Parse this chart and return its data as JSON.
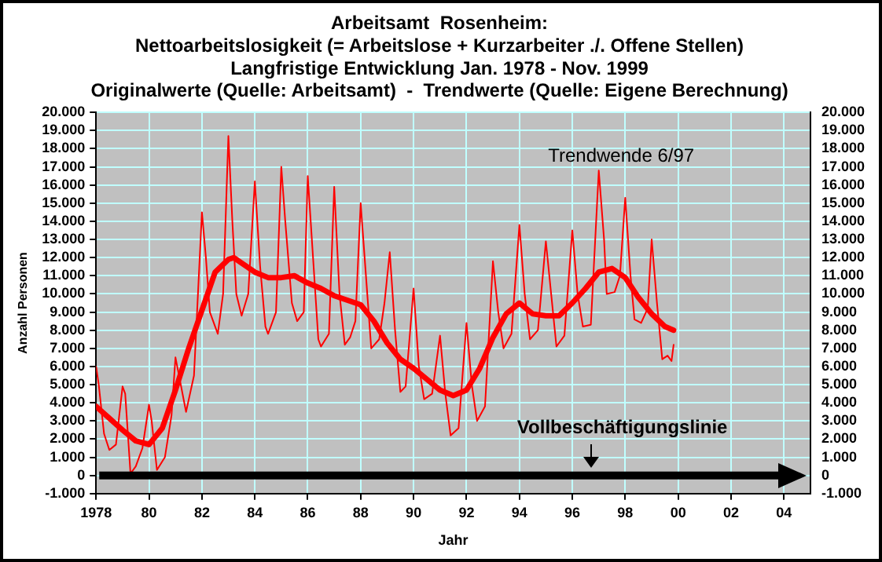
{
  "chart_data": {
    "type": "line",
    "title": [
      "Arbeitsamt  Rosenheim:",
      "Nettoarbeitslosigkeit (= Arbeitslose + Kurzarbeiter ./. Offene Stellen)",
      "Langfristige Entwicklung Jan. 1978 - Nov. 1999",
      "Originalwerte (Quelle: Arbeitsamt)  -  Trendwerte (Quelle: Eigene Berechnung)"
    ],
    "xlabel": "Jahr",
    "ylabel": "Anzahl Personen",
    "xlim": [
      1978,
      2005
    ],
    "xticks": [
      {
        "value": 1978,
        "label": "1978"
      },
      {
        "value": 1980,
        "label": "80"
      },
      {
        "value": 1982,
        "label": "82"
      },
      {
        "value": 1984,
        "label": "84"
      },
      {
        "value": 1986,
        "label": "86"
      },
      {
        "value": 1988,
        "label": "88"
      },
      {
        "value": 1990,
        "label": "90"
      },
      {
        "value": 1992,
        "label": "92"
      },
      {
        "value": 1994,
        "label": "94"
      },
      {
        "value": 1996,
        "label": "96"
      },
      {
        "value": 1998,
        "label": "98"
      },
      {
        "value": 2000,
        "label": "00"
      },
      {
        "value": 2002,
        "label": "02"
      },
      {
        "value": 2004,
        "label": "04"
      }
    ],
    "ylim": [
      -1000,
      20000
    ],
    "yticks": [
      {
        "value": -1000,
        "label": "-1.000"
      },
      0,
      {
        "value": 1000,
        "label": "1.000"
      },
      {
        "value": 2000,
        "label": "2.000"
      },
      {
        "value": 3000,
        "label": "3.000"
      },
      {
        "value": 4000,
        "label": "4.000"
      },
      {
        "value": 5000,
        "label": "5.000"
      },
      {
        "value": 6000,
        "label": "6.000"
      },
      {
        "value": 7000,
        "label": "7.000"
      },
      {
        "value": 8000,
        "label": "8.000"
      },
      {
        "value": 9000,
        "label": "9.000"
      },
      {
        "value": 10000,
        "label": "10.000"
      },
      {
        "value": 11000,
        "label": "11.000"
      },
      {
        "value": 12000,
        "label": "12.000"
      },
      {
        "value": 13000,
        "label": "13.000"
      },
      {
        "value": 14000,
        "label": "14.000"
      },
      {
        "value": 15000,
        "label": "15.000"
      },
      {
        "value": 16000,
        "label": "16.000"
      },
      {
        "value": 17000,
        "label": "17.000"
      },
      {
        "value": 18000,
        "label": "18.000"
      },
      {
        "value": 19000,
        "label": "19.000"
      },
      {
        "value": 20000,
        "label": "20.000"
      }
    ],
    "y2lim": [
      -1000,
      20000
    ],
    "y2ticks": [
      {
        "value": -1000,
        "label": "-1.000"
      },
      0,
      {
        "value": 1000,
        "label": "1.000"
      },
      {
        "value": 2000,
        "label": "2.000"
      },
      {
        "value": 3000,
        "label": "3.000"
      },
      {
        "value": 4000,
        "label": "4.000"
      },
      {
        "value": 5000,
        "label": "5.000"
      },
      {
        "value": 6000,
        "label": "6.000"
      },
      {
        "value": 7000,
        "label": "7.000"
      },
      {
        "value": 8000,
        "label": "8.000"
      },
      {
        "value": 9000,
        "label": "9.000"
      },
      {
        "value": 10000,
        "label": "10.000"
      },
      {
        "value": 11000,
        "label": "11.000"
      },
      {
        "value": 12000,
        "label": "12.000"
      },
      {
        "value": 13000,
        "label": "13.000"
      },
      {
        "value": 14000,
        "label": "14.000"
      },
      {
        "value": 15000,
        "label": "15.000"
      },
      {
        "value": 16000,
        "label": "16.000"
      },
      {
        "value": 17000,
        "label": "17.000"
      },
      {
        "value": 18000,
        "label": "18.000"
      },
      {
        "value": 19000,
        "label": "19.000"
      },
      {
        "value": 20000,
        "label": "20.000"
      }
    ],
    "grid": true,
    "legend": false,
    "marker": "none",
    "line_style": "solid",
    "series": [
      {
        "color": "#ff0000",
        "x": [
          1978.0,
          1978.1,
          1978.3,
          1978.5,
          1978.75,
          1979.0,
          1979.1,
          1979.3,
          1979.5,
          1979.75,
          1980.0,
          1980.1,
          1980.3,
          1980.6,
          1980.85,
          1981.0,
          1981.2,
          1981.4,
          1981.7,
          1982.0,
          1982.15,
          1982.3,
          1982.5,
          1982.6,
          1982.8,
          1983.0,
          1983.15,
          1983.3,
          1983.5,
          1983.75,
          1984.0,
          1984.2,
          1984.4,
          1984.5,
          1984.8,
          1985.0,
          1985.15,
          1985.4,
          1985.6,
          1985.85,
          1986.0,
          1986.2,
          1986.4,
          1986.5,
          1986.8,
          1987.0,
          1987.2,
          1987.4,
          1987.6,
          1987.8,
          1988.0,
          1988.2,
          1988.4,
          1988.7,
          1988.9,
          1989.1,
          1989.3,
          1989.5,
          1989.7,
          1990.0,
          1990.2,
          1990.4,
          1990.7,
          1991.0,
          1991.2,
          1991.4,
          1991.7,
          1992.0,
          1992.2,
          1992.4,
          1992.7,
          1993.0,
          1993.2,
          1993.4,
          1993.7,
          1994.0,
          1994.2,
          1994.4,
          1994.7,
          1995.0,
          1995.2,
          1995.4,
          1995.7,
          1996.0,
          1996.2,
          1996.4,
          1996.7,
          1997.0,
          1997.2,
          1997.3,
          1997.6,
          1997.8,
          1998.0,
          1998.2,
          1998.35,
          1998.6,
          1998.85,
          1999.0,
          1999.2,
          1999.4,
          1999.6,
          1999.75,
          1999.83
        ],
        "values": [
          6000,
          5000,
          2300,
          1400,
          1700,
          4900,
          4500,
          100,
          500,
          1500,
          3900,
          3000,
          300,
          1000,
          3300,
          6500,
          5000,
          3500,
          5500,
          14500,
          12000,
          9000,
          8200,
          7800,
          10000,
          18700,
          14000,
          10000,
          8800,
          10000,
          16200,
          11500,
          8200,
          7800,
          9000,
          17000,
          14000,
          9500,
          8500,
          9000,
          16500,
          12000,
          7500,
          7100,
          7800,
          15900,
          10000,
          7200,
          7600,
          8500,
          15000,
          11000,
          7000,
          7500,
          9500,
          12300,
          8000,
          4600,
          4900,
          10300,
          6000,
          4200,
          4500,
          7700,
          4500,
          2200,
          2600,
          8400,
          5000,
          3000,
          3800,
          11800,
          9000,
          7000,
          7800,
          13800,
          10000,
          7500,
          8000,
          12900,
          10000,
          7100,
          7700,
          13500,
          10000,
          8200,
          8300,
          16800,
          13000,
          10000,
          10100,
          11000,
          15300,
          11000,
          8600,
          8400,
          9200,
          13000,
          9500,
          6400,
          6600,
          6300,
          7200
        ]
      },
      {
        "color": "#ff0000",
        "x": [
          1978.0,
          1979.0,
          1979.5,
          1980.0,
          1980.5,
          1981.0,
          1981.5,
          1982.0,
          1982.5,
          1983.0,
          1983.2,
          1983.5,
          1984.0,
          1984.5,
          1985.0,
          1985.5,
          1986.0,
          1986.5,
          1987.0,
          1988.0,
          1988.5,
          1989.0,
          1989.5,
          1990.0,
          1990.5,
          1991.0,
          1991.5,
          1992.0,
          1992.5,
          1993.0,
          1993.5,
          1994.0,
          1994.5,
          1995.0,
          1995.5,
          1996.0,
          1996.5,
          1997.0,
          1997.5,
          1998.0,
          1998.5,
          1999.0,
          1999.5,
          1999.83
        ],
        "values": [
          3800,
          2500,
          1900,
          1700,
          2600,
          4700,
          7000,
          9100,
          11200,
          11900,
          12000,
          11700,
          11200,
          10900,
          10900,
          11000,
          10600,
          10300,
          9900,
          9400,
          8500,
          7300,
          6400,
          5900,
          5300,
          4700,
          4400,
          4700,
          5900,
          7600,
          8900,
          9500,
          8900,
          8800,
          8800,
          9500,
          10300,
          11200,
          11400,
          10900,
          9800,
          8900,
          8200,
          8000
        ]
      }
    ],
    "ref_lines": [
      {
        "axis": "y",
        "value": 0,
        "label": "Vollbeschäftigungslinie",
        "color": "#000000"
      }
    ],
    "annotations": [
      "Trendwende 6/97"
    ]
  }
}
